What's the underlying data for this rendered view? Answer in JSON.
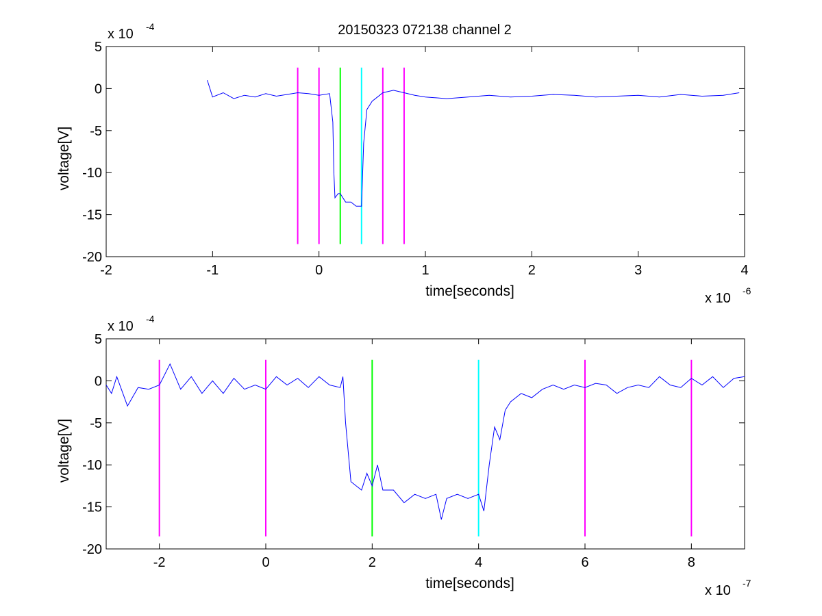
{
  "figure": {
    "title": "20150323 072138 channel 2"
  },
  "colors": {
    "signal": "#0000ff",
    "magenta": "#ff00ff",
    "green": "#00ff00",
    "cyan": "#00ffff",
    "axes": "#000000",
    "background": "#ffffff"
  },
  "chart_data": [
    {
      "type": "line",
      "title": "20150323 072138 channel 2",
      "xlabel": "time[seconds]",
      "ylabel": "voltage[V]",
      "x_multiplier_label": "x 10",
      "x_multiplier_exp": "-6",
      "y_multiplier_label": "x 10",
      "y_multiplier_exp": "-4",
      "xlim": [
        -2,
        4
      ],
      "ylim": [
        -20,
        5
      ],
      "xticks": [
        -2,
        -1,
        0,
        1,
        2,
        3,
        4
      ],
      "xtick_labels": [
        "-2",
        "-1",
        "0",
        "1",
        "2",
        "3",
        "4"
      ],
      "yticks": [
        5,
        0,
        -5,
        -10,
        -15,
        -20
      ],
      "ytick_labels": [
        "5",
        "0",
        "-5",
        "-10",
        "-15",
        "-20"
      ],
      "grid": false,
      "series": [
        {
          "color": "#0000ff",
          "x": [
            -1.05,
            -1.0,
            -0.9,
            -0.8,
            -0.7,
            -0.6,
            -0.5,
            -0.4,
            -0.3,
            -0.2,
            -0.1,
            0.0,
            0.1,
            0.13,
            0.14,
            0.15,
            0.18,
            0.2,
            0.25,
            0.3,
            0.35,
            0.38,
            0.4,
            0.42,
            0.45,
            0.5,
            0.55,
            0.6,
            0.7,
            0.8,
            0.9,
            1.0,
            1.2,
            1.4,
            1.6,
            1.8,
            2.0,
            2.2,
            2.4,
            2.6,
            2.8,
            3.0,
            3.2,
            3.4,
            3.6,
            3.8,
            3.95
          ],
          "y": [
            1.0,
            -1.0,
            -0.5,
            -1.2,
            -0.8,
            -1.0,
            -0.6,
            -0.9,
            -0.7,
            -0.5,
            -0.6,
            -0.8,
            -0.6,
            -4.0,
            -10.0,
            -13.0,
            -12.5,
            -12.5,
            -13.5,
            -13.5,
            -14.0,
            -14.0,
            -14.0,
            -6.5,
            -2.5,
            -1.5,
            -1.0,
            -0.5,
            -0.2,
            -0.5,
            -0.8,
            -1.0,
            -1.2,
            -1.0,
            -0.8,
            -1.0,
            -0.9,
            -0.7,
            -0.8,
            -1.0,
            -0.9,
            -0.8,
            -1.0,
            -0.7,
            -0.9,
            -0.8,
            -0.5
          ]
        }
      ],
      "vlines": [
        {
          "x": -0.2,
          "color": "#ff00ff",
          "y0": -18.5,
          "y1": 2.5
        },
        {
          "x": 0.0,
          "color": "#ff00ff",
          "y0": -18.5,
          "y1": 2.5
        },
        {
          "x": 0.2,
          "color": "#00ff00",
          "y0": -18.5,
          "y1": 2.5
        },
        {
          "x": 0.4,
          "color": "#00ffff",
          "y0": -18.5,
          "y1": 2.5
        },
        {
          "x": 0.6,
          "color": "#ff00ff",
          "y0": -18.5,
          "y1": 2.5
        },
        {
          "x": 0.8,
          "color": "#ff00ff",
          "y0": -18.5,
          "y1": 2.5
        }
      ]
    },
    {
      "type": "line",
      "title": "",
      "xlabel": "time[seconds]",
      "ylabel": "voltage[V]",
      "x_multiplier_label": "x 10",
      "x_multiplier_exp": "-7",
      "y_multiplier_label": "x 10",
      "y_multiplier_exp": "-4",
      "xlim": [
        -3,
        9
      ],
      "ylim": [
        -20,
        5
      ],
      "xticks": [
        -2,
        0,
        2,
        4,
        6,
        8
      ],
      "xtick_labels": [
        "-2",
        "0",
        "2",
        "4",
        "6",
        "8"
      ],
      "yticks": [
        5,
        0,
        -5,
        -10,
        -15,
        -20
      ],
      "ytick_labels": [
        "5",
        "0",
        "-5",
        "-10",
        "-15",
        "-20"
      ],
      "grid": false,
      "series": [
        {
          "color": "#0000ff",
          "x": [
            -3.0,
            -2.9,
            -2.8,
            -2.6,
            -2.4,
            -2.2,
            -2.0,
            -1.8,
            -1.6,
            -1.4,
            -1.2,
            -1.0,
            -0.8,
            -0.6,
            -0.4,
            -0.2,
            0.0,
            0.2,
            0.4,
            0.6,
            0.8,
            1.0,
            1.2,
            1.4,
            1.45,
            1.5,
            1.6,
            1.7,
            1.8,
            1.9,
            2.0,
            2.1,
            2.2,
            2.4,
            2.6,
            2.8,
            3.0,
            3.2,
            3.3,
            3.4,
            3.6,
            3.8,
            4.0,
            4.1,
            4.2,
            4.3,
            4.4,
            4.5,
            4.6,
            4.8,
            5.0,
            5.2,
            5.4,
            5.6,
            5.8,
            6.0,
            6.2,
            6.4,
            6.6,
            6.8,
            7.0,
            7.2,
            7.4,
            7.6,
            7.8,
            8.0,
            8.2,
            8.4,
            8.6,
            8.8,
            9.0
          ],
          "y": [
            -0.5,
            -1.5,
            0.5,
            -3.0,
            -0.8,
            -1.0,
            -0.5,
            2.0,
            -1.0,
            0.5,
            -1.5,
            0.0,
            -1.5,
            0.3,
            -1.0,
            -0.5,
            -1.0,
            0.5,
            -0.5,
            0.3,
            -0.8,
            0.5,
            -0.5,
            -0.8,
            0.5,
            -5.0,
            -12.0,
            -12.5,
            -13.0,
            -11.0,
            -12.5,
            -10.0,
            -13.0,
            -13.0,
            -14.5,
            -13.5,
            -14.0,
            -13.5,
            -16.5,
            -14.0,
            -13.5,
            -14.0,
            -13.5,
            -15.5,
            -10.0,
            -5.5,
            -7.0,
            -3.5,
            -2.5,
            -1.5,
            -2.0,
            -1.0,
            -0.5,
            -1.0,
            -0.5,
            -0.8,
            -0.3,
            -0.5,
            -1.5,
            -0.8,
            -0.5,
            -0.8,
            0.5,
            -0.5,
            -0.8,
            0.3,
            -0.5,
            0.5,
            -0.8,
            0.3,
            0.5
          ]
        }
      ],
      "vlines": [
        {
          "x": -2,
          "color": "#ff00ff",
          "y0": -18.5,
          "y1": 2.5
        },
        {
          "x": 0,
          "color": "#ff00ff",
          "y0": -18.5,
          "y1": 2.5
        },
        {
          "x": 2,
          "color": "#00ff00",
          "y0": -18.5,
          "y1": 2.5
        },
        {
          "x": 4,
          "color": "#00ffff",
          "y0": -18.5,
          "y1": 2.5
        },
        {
          "x": 6,
          "color": "#ff00ff",
          "y0": -18.5,
          "y1": 2.5
        },
        {
          "x": 8,
          "color": "#ff00ff",
          "y0": -18.5,
          "y1": 2.5
        }
      ]
    }
  ]
}
